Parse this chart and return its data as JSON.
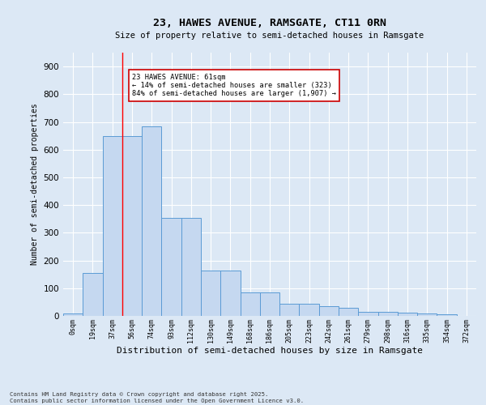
{
  "title1": "23, HAWES AVENUE, RAMSGATE, CT11 0RN",
  "title2": "Size of property relative to semi-detached houses in Ramsgate",
  "xlabel": "Distribution of semi-detached houses by size in Ramsgate",
  "ylabel": "Number of semi-detached properties",
  "bar_values": [
    10,
    155,
    650,
    650,
    685,
    355,
    355,
    165,
    165,
    85,
    85,
    45,
    45,
    35,
    30,
    15,
    15,
    12,
    10,
    5,
    0
  ],
  "categories": [
    "0sqm",
    "19sqm",
    "37sqm",
    "56sqm",
    "74sqm",
    "93sqm",
    "112sqm",
    "130sqm",
    "149sqm",
    "168sqm",
    "186sqm",
    "205sqm",
    "223sqm",
    "242sqm",
    "261sqm",
    "279sqm",
    "298sqm",
    "316sqm",
    "335sqm",
    "354sqm",
    "372sqm"
  ],
  "bar_color": "#c5d8f0",
  "bar_edge_color": "#5b9bd5",
  "background_color": "#dce8f5",
  "grid_color": "#ffffff",
  "annotation_box_color": "#ffffff",
  "annotation_border_color": "#cc0000",
  "red_line_x": 2.5,
  "annotation_text_line1": "23 HAWES AVENUE: 61sqm",
  "annotation_text_line2": "← 14% of semi-detached houses are smaller (323)",
  "annotation_text_line3": "84% of semi-detached houses are larger (1,907) →",
  "footer_line1": "Contains HM Land Registry data © Crown copyright and database right 2025.",
  "footer_line2": "Contains public sector information licensed under the Open Government Licence v3.0.",
  "ylim": [
    0,
    950
  ],
  "yticks": [
    0,
    100,
    200,
    300,
    400,
    500,
    600,
    700,
    800,
    900
  ]
}
